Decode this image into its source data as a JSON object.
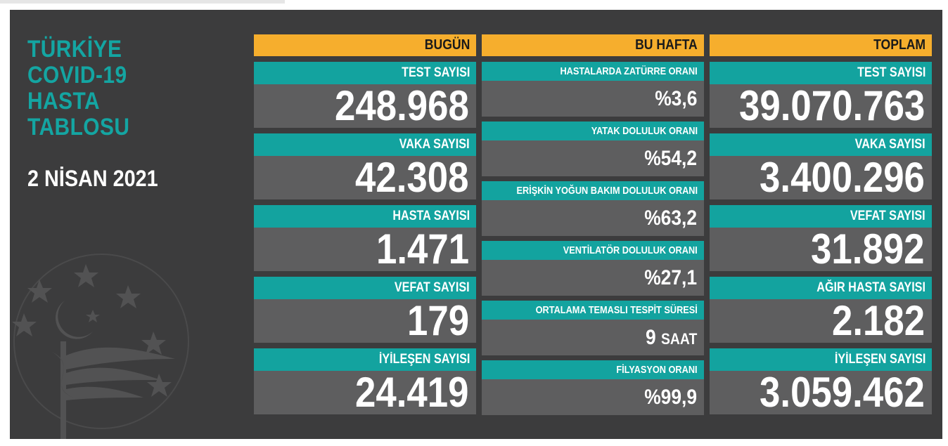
{
  "sidebar": {
    "title_lines": [
      "TÜRKİYE",
      "COVID-19",
      "HASTA",
      "TABLOSU"
    ],
    "date": "2 NİSAN 2021"
  },
  "columns": {
    "today": {
      "header": "BUGÜN",
      "cards": [
        {
          "label": "TEST SAYISI",
          "value": "248.968"
        },
        {
          "label": "VAKA SAYISI",
          "value": "42.308"
        },
        {
          "label": "HASTA SAYISI",
          "value": "1.471"
        },
        {
          "label": "VEFAT SAYISI",
          "value": "179"
        },
        {
          "label": "İYİLEŞEN SAYISI",
          "value": "24.419"
        }
      ]
    },
    "week": {
      "header": "BU HAFTA",
      "cards": [
        {
          "label": "HASTALARDA ZATÜRRE ORANI",
          "value": "%3,6",
          "unit": ""
        },
        {
          "label": "YATAK DOLULUK ORANI",
          "value": "%54,2",
          "unit": ""
        },
        {
          "label": "ERİŞKİN YOĞUN BAKIM DOLULUK ORANI",
          "value": "%63,2",
          "unit": ""
        },
        {
          "label": "VENTİLATÖR DOLULUK ORANI",
          "value": "%27,1",
          "unit": ""
        },
        {
          "label": "ORTALAMA TEMASLI TESPİT SÜRESİ",
          "value": "9",
          "unit": "SAAT"
        },
        {
          "label": "FİLYASYON ORANI",
          "value": "%99,9",
          "unit": ""
        }
      ]
    },
    "total": {
      "header": "TOPLAM",
      "cards": [
        {
          "label": "TEST SAYISI",
          "value": "39.070.763"
        },
        {
          "label": "VAKA SAYISI",
          "value": "3.400.296"
        },
        {
          "label": "VEFAT SAYISI",
          "value": "31.892"
        },
        {
          "label": "AĞIR HASTA SAYISI",
          "value": "2.182"
        },
        {
          "label": "İYİLEŞEN SAYISI",
          "value": "3.059.462"
        }
      ]
    }
  },
  "colors": {
    "panel": "#3c3c3d",
    "header": "#f6ae2d",
    "label": "#13a39f",
    "value_bg": "#5e5e5f",
    "title": "#14a5a2"
  },
  "icons": [
    "ministry-emblem-icon"
  ]
}
